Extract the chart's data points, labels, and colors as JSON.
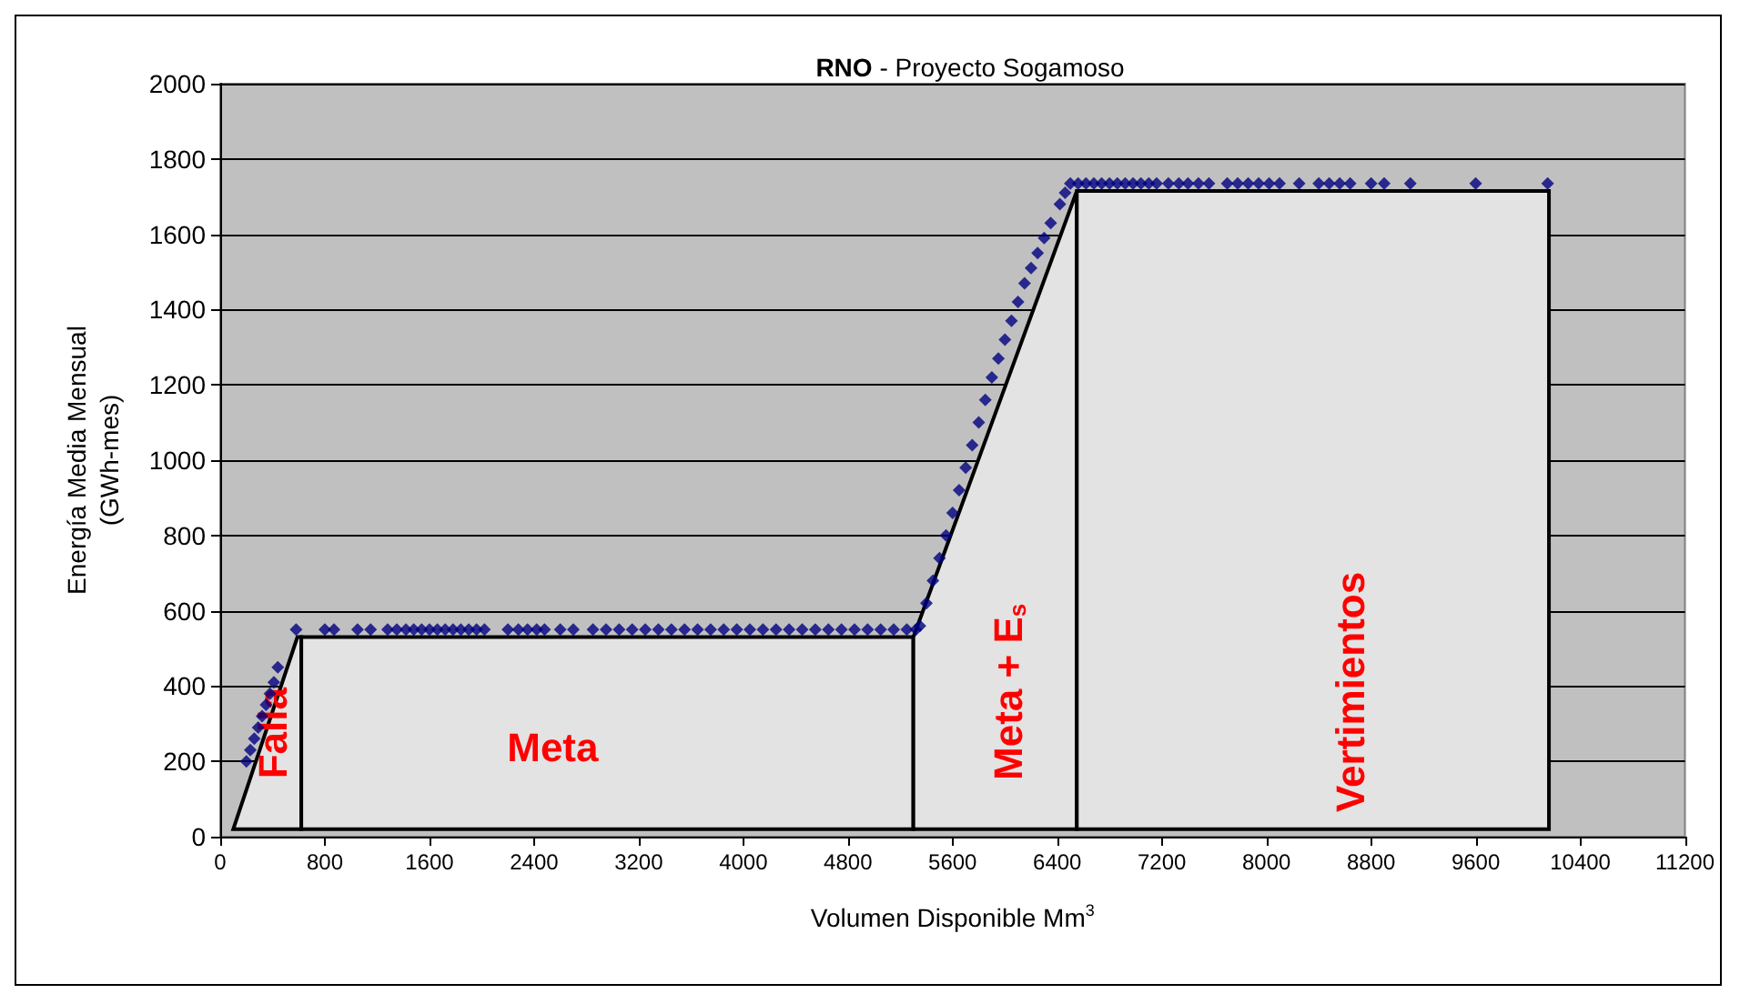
{
  "chart_data": {
    "type": "scatter",
    "title": "RNO - Proyecto Sogamoso",
    "xlabel": "Volumen Disponible Mm$^{3}$",
    "ylabel": "Energía Media Mensual\n(GWh-mes)",
    "xlim": [
      0,
      11200
    ],
    "xticks": [
      0,
      800,
      1600,
      2400,
      3200,
      4000,
      4800,
      5600,
      6400,
      7200,
      8000,
      8800,
      9600,
      10400,
      11200
    ],
    "ylim": [
      0,
      2000
    ],
    "yticks": [
      0,
      200,
      400,
      600,
      800,
      1000,
      1200,
      1400,
      1600,
      1800,
      2000
    ],
    "grid": "y",
    "legend": false,
    "series": [
      {
        "name": "Falla",
        "type": "area",
        "color": "#e3e3e3",
        "x": [
          100,
          590,
          620,
          620
        ],
        "values": [
          20,
          530,
          530,
          20
        ]
      },
      {
        "name": "Meta",
        "type": "area",
        "color": "#e3e3e3",
        "x": [
          620,
          620,
          5300,
          5300
        ],
        "values": [
          20,
          530,
          530,
          20
        ]
      },
      {
        "name": "Meta + E$_{s}$",
        "type": "area",
        "color": "#e3e3e3",
        "x": [
          5300,
          5300,
          6550,
          6550
        ],
        "values": [
          20,
          530,
          1715,
          20
        ]
      },
      {
        "name": "Vertimientos",
        "type": "area",
        "color": "#e3e3e3",
        "x": [
          6550,
          6550,
          10160,
          10160
        ],
        "values": [
          20,
          1715,
          1715,
          20
        ]
      },
      {
        "marker": "diamond",
        "color": "#000080",
        "x": [
          200,
          230,
          260,
          290,
          320,
          350,
          380,
          410,
          440,
          580,
          800,
          870,
          1050,
          1150,
          1280,
          1350,
          1420,
          1480,
          1540,
          1600,
          1660,
          1720,
          1780,
          1840,
          1900,
          1960,
          2020,
          2200,
          2280,
          2350,
          2420,
          2480,
          2600,
          2700,
          2850,
          2950,
          3050,
          3150,
          3250,
          3350,
          3450,
          3550,
          3650,
          3750,
          3850,
          3950,
          4050,
          4150,
          4250,
          4350,
          4450,
          4550,
          4650,
          4750,
          4850,
          4950,
          5050,
          5150,
          5250,
          5320,
          5350,
          5400,
          5450,
          5500,
          5550,
          5600,
          5650,
          5700,
          5750,
          5800,
          5850,
          5900,
          5950,
          6000,
          6050,
          6100,
          6150,
          6200,
          6250,
          6300,
          6350,
          6420,
          6460,
          6500,
          6560,
          6620,
          6680,
          6740,
          6800,
          6860,
          6920,
          6980,
          7040,
          7100,
          7160,
          7250,
          7330,
          7400,
          7480,
          7560,
          7700,
          7780,
          7860,
          7940,
          8020,
          8100,
          8250,
          8400,
          8480,
          8560,
          8640,
          8800,
          8900,
          9100,
          9600,
          10150
        ],
        "values": [
          200,
          230,
          260,
          290,
          320,
          350,
          380,
          410,
          450,
          550,
          550,
          550,
          550,
          550,
          550,
          550,
          550,
          550,
          550,
          550,
          550,
          550,
          550,
          550,
          550,
          550,
          550,
          550,
          550,
          550,
          550,
          550,
          550,
          550,
          550,
          550,
          550,
          550,
          550,
          550,
          550,
          550,
          550,
          550,
          550,
          550,
          550,
          550,
          550,
          550,
          550,
          550,
          550,
          550,
          550,
          550,
          550,
          550,
          550,
          550,
          560,
          620,
          680,
          740,
          800,
          860,
          920,
          980,
          1040,
          1100,
          1160,
          1220,
          1270,
          1320,
          1370,
          1420,
          1470,
          1510,
          1550,
          1590,
          1630,
          1680,
          1710,
          1735,
          1735,
          1735,
          1735,
          1735,
          1735,
          1735,
          1735,
          1735,
          1735,
          1735,
          1735,
          1735,
          1735,
          1735,
          1735,
          1735,
          1735,
          1735,
          1735,
          1735,
          1735,
          1735,
          1735,
          1735,
          1735,
          1735,
          1735,
          1735,
          1735,
          1735,
          1735,
          1735
        ]
      }
    ]
  }
}
